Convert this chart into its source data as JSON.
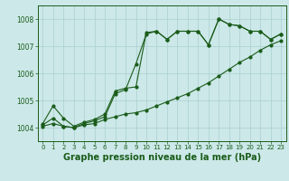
{
  "title": "Graphe pression niveau de la mer (hPa)",
  "bg_color": "#cce8e8",
  "line_color": "#1a5c1a",
  "grid_color": "#aacfcf",
  "xlim": [
    -0.5,
    23.5
  ],
  "ylim": [
    1003.5,
    1008.5
  ],
  "yticks": [
    1004,
    1005,
    1006,
    1007,
    1008
  ],
  "xticks": [
    0,
    1,
    2,
    3,
    4,
    5,
    6,
    7,
    8,
    9,
    10,
    11,
    12,
    13,
    14,
    15,
    16,
    17,
    18,
    19,
    20,
    21,
    22,
    23
  ],
  "series1_x": [
    0,
    1,
    2,
    3,
    4,
    5,
    6,
    7,
    8,
    9,
    10,
    11,
    12,
    13,
    14,
    15,
    16,
    17,
    18,
    19,
    20,
    21,
    22,
    23
  ],
  "series1_y": [
    1004.15,
    1004.8,
    1004.35,
    1004.05,
    1004.2,
    1004.3,
    1004.5,
    1005.35,
    1005.45,
    1005.5,
    1007.5,
    1007.55,
    1007.25,
    1007.55,
    1007.55,
    1007.55,
    1007.05,
    1008.0,
    1007.8,
    1007.75,
    1007.55,
    1007.55,
    1007.25,
    1007.45
  ],
  "series2_x": [
    0,
    1,
    2,
    3,
    4,
    5,
    6,
    7,
    8,
    9,
    10,
    11,
    12,
    13,
    14,
    15,
    16,
    17,
    18,
    19,
    20,
    21,
    22,
    23
  ],
  "series2_y": [
    1004.1,
    1004.35,
    1004.05,
    1004.0,
    1004.15,
    1004.25,
    1004.4,
    1005.25,
    1005.4,
    1006.35,
    1007.45,
    1007.55,
    1007.25,
    1007.55,
    1007.55,
    1007.55,
    1007.05,
    1008.0,
    1007.8,
    1007.75,
    1007.55,
    1007.55,
    1007.25,
    1007.45
  ],
  "series3_x": [
    0,
    1,
    2,
    3,
    4,
    5,
    6,
    7,
    8,
    9,
    10,
    11,
    12,
    13,
    14,
    15,
    16,
    17,
    18,
    19,
    20,
    21,
    22,
    23
  ],
  "series3_y": [
    1004.05,
    1004.15,
    1004.05,
    1004.0,
    1004.1,
    1004.15,
    1004.3,
    1004.4,
    1004.5,
    1004.55,
    1004.65,
    1004.8,
    1004.95,
    1005.1,
    1005.25,
    1005.45,
    1005.65,
    1005.9,
    1006.15,
    1006.4,
    1006.6,
    1006.85,
    1007.05,
    1007.2
  ],
  "title_fontsize": 7,
  "tick_fontsize": 5.5
}
